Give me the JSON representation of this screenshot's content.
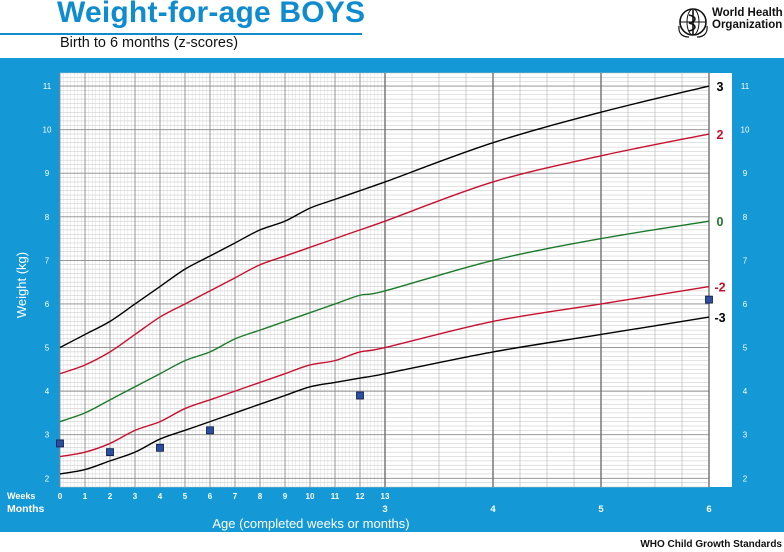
{
  "header": {
    "title": "Weight-for-age BOYS",
    "subtitle": "Birth to 6 months (z-scores)",
    "org_line1": "World Health",
    "org_line2": "Organization"
  },
  "footer": {
    "text": "WHO Child Growth Standards"
  },
  "colors": {
    "panel": "#1598d6",
    "title": "#0f8bcf",
    "z3": "#000000",
    "z2": "#c8102e",
    "z0": "#1b7a2a",
    "marker": "#2a4fa0"
  },
  "chart_data": {
    "type": "line",
    "title": "Weight-for-age BOYS",
    "subtitle": "Birth to 6 months (z-scores)",
    "xlabel": "Age (completed weeks or months)",
    "ylabel": "Weight (kg)",
    "ylim": [
      1.8,
      11.3
    ],
    "grid": true,
    "week_ticks": [
      "0",
      "1",
      "2",
      "3",
      "4",
      "5",
      "6",
      "7",
      "8",
      "9",
      "10",
      "11",
      "12",
      "13"
    ],
    "month_ticks": [
      "3",
      "4",
      "5",
      "6"
    ],
    "row_label_weeks": "Weeks",
    "row_label_months": "Months",
    "y_ticks": [
      "2",
      "3",
      "4",
      "5",
      "6",
      "7",
      "8",
      "9",
      "10",
      "11"
    ],
    "x_weeks": [
      0,
      1,
      2,
      3,
      4,
      5,
      6,
      7,
      8,
      9,
      10,
      11,
      12,
      13
    ],
    "x_months": [
      3,
      4,
      5,
      6
    ],
    "series": [
      {
        "name": "3",
        "weeks": [
          5.0,
          5.3,
          5.6,
          6.0,
          6.4,
          6.8,
          7.1,
          7.4,
          7.7,
          7.9,
          8.2,
          8.4,
          8.6,
          8.8
        ],
        "months": [
          8.8,
          9.7,
          10.4,
          11.0
        ]
      },
      {
        "name": "2",
        "weeks": [
          4.4,
          4.6,
          4.9,
          5.3,
          5.7,
          6.0,
          6.3,
          6.6,
          6.9,
          7.1,
          7.3,
          7.5,
          7.7,
          7.9
        ],
        "months": [
          8.0,
          8.8,
          9.4,
          9.9
        ]
      },
      {
        "name": "0",
        "weeks": [
          3.3,
          3.5,
          3.8,
          4.1,
          4.4,
          4.7,
          4.9,
          5.2,
          5.4,
          5.6,
          5.8,
          6.0,
          6.2,
          6.3
        ],
        "months": [
          6.4,
          7.0,
          7.5,
          7.9
        ]
      },
      {
        "name": "-2",
        "weeks": [
          2.5,
          2.6,
          2.8,
          3.1,
          3.3,
          3.6,
          3.8,
          4.0,
          4.2,
          4.4,
          4.6,
          4.7,
          4.9,
          5.0
        ],
        "months": [
          5.1,
          5.6,
          6.0,
          6.4
        ]
      },
      {
        "name": "-3",
        "weeks": [
          2.1,
          2.2,
          2.4,
          2.6,
          2.9,
          3.1,
          3.3,
          3.5,
          3.7,
          3.9,
          4.1,
          4.2,
          4.3,
          4.4
        ],
        "months": [
          4.4,
          4.9,
          5.3,
          5.7
        ]
      }
    ],
    "points": [
      {
        "week": 0,
        "weight": 2.8
      },
      {
        "week": 2,
        "weight": 2.6
      },
      {
        "week": 4,
        "weight": 2.7
      },
      {
        "week": 6,
        "weight": 3.1
      },
      {
        "week": 12,
        "weight": 3.9
      },
      {
        "month": 6,
        "weight": 6.1
      }
    ]
  }
}
